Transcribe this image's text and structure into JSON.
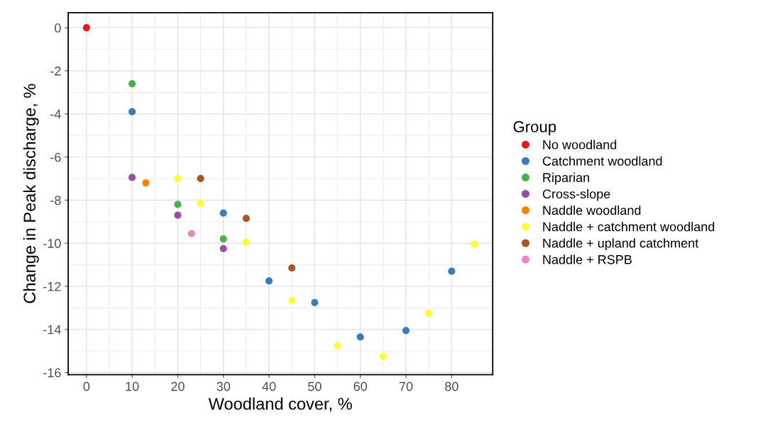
{
  "chart_data": {
    "type": "scatter",
    "xlabel": "Woodland cover, %",
    "ylabel": "Change in Peak discharge, %",
    "legend_title": "Group",
    "legend": "right",
    "grid": true,
    "marker": "circle",
    "xlim": [
      -4,
      89
    ],
    "ylim": [
      -16.1,
      0.7
    ],
    "xticks": [
      0,
      10,
      20,
      30,
      40,
      50,
      60,
      70,
      80
    ],
    "yticks": [
      0,
      -2,
      -4,
      -6,
      -8,
      -10,
      -12,
      -14,
      -16
    ],
    "series": [
      {
        "name": "No woodland",
        "color": "#e41a1c",
        "x": [
          0
        ],
        "values": [
          0
        ]
      },
      {
        "name": "Catchment woodland",
        "color": "#377eb8",
        "x": [
          10,
          20,
          30,
          40,
          50,
          60,
          70,
          80
        ],
        "values": [
          -3.9,
          null,
          -8.6,
          -11.75,
          -12.75,
          -14.35,
          -14.05,
          -11.3
        ]
      },
      {
        "name": "Riparian",
        "color": "#4daf4a",
        "x": [
          10,
          20,
          30
        ],
        "values": [
          -2.6,
          -8.2,
          -9.8
        ]
      },
      {
        "name": "Cross-slope",
        "color": "#984ea3",
        "x": [
          10,
          20,
          30
        ],
        "values": [
          -6.95,
          -8.7,
          -10.25
        ]
      },
      {
        "name": "Naddle woodland",
        "color": "#ff7f00",
        "x": [
          13
        ],
        "values": [
          -7.2
        ]
      },
      {
        "name": "Naddle + catchment woodland",
        "color": "#ffff33",
        "x": [
          20,
          25,
          35,
          45,
          55,
          65,
          75,
          85
        ],
        "values": [
          -7.0,
          -8.15,
          -9.95,
          -12.65,
          -14.75,
          -15.25,
          -13.25,
          -10.05
        ]
      },
      {
        "name": "Naddle + upland catchment",
        "color": "#a65628",
        "x": [
          25,
          35,
          45
        ],
        "values": [
          -7.0,
          -8.85,
          -11.15
        ]
      },
      {
        "name": "Naddle + RSPB",
        "color": "#f781bf",
        "x": [
          23
        ],
        "values": [
          -9.55
        ]
      }
    ]
  }
}
